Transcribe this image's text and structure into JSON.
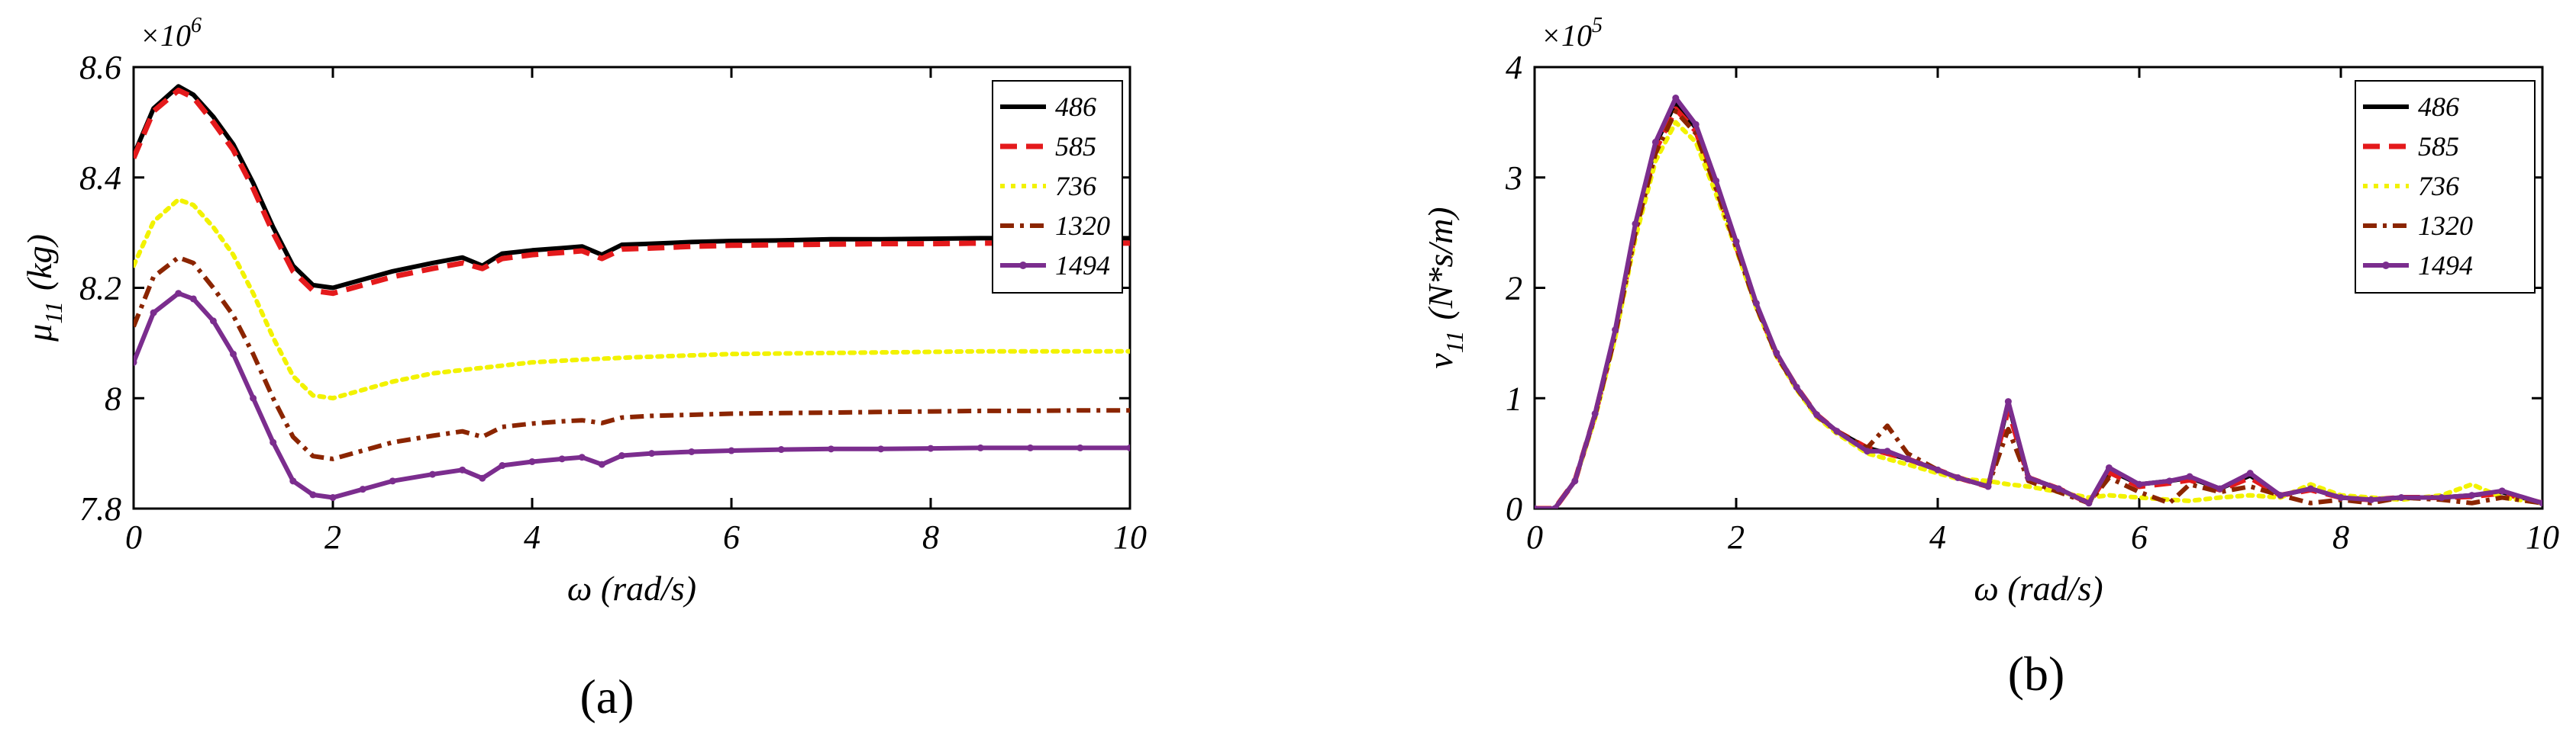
{
  "chart_data": [
    {
      "type": "line",
      "panel_label": "(a)",
      "title": "",
      "xlabel": "ω (rad/s)",
      "ylabel_symbol": "μ",
      "ylabel_subscript": "11",
      "ylabel_unit": "(kg)",
      "multiplier_base": "×10",
      "multiplier_exp": "6",
      "xlim": [
        0,
        10
      ],
      "ylim": [
        7.8,
        8.6
      ],
      "xticks": [
        0,
        2,
        4,
        6,
        8,
        10
      ],
      "xtick_labels": [
        "0",
        "2",
        "4",
        "6",
        "8",
        "10"
      ],
      "yticks": [
        7.8,
        8.0,
        8.2,
        8.4,
        8.6
      ],
      "ytick_labels": [
        "7.8",
        "8",
        "8.2",
        "8.4",
        "8.6"
      ],
      "legend_position": "top-right",
      "series": [
        {
          "name": "486",
          "color": "#000000",
          "style": "solid",
          "x": [
            0,
            0.2,
            0.45,
            0.6,
            0.8,
            1.0,
            1.2,
            1.4,
            1.6,
            1.8,
            2.0,
            2.3,
            2.6,
            3.0,
            3.3,
            3.5,
            3.7,
            4.0,
            4.3,
            4.5,
            4.7,
            4.9,
            5.2,
            5.6,
            6.0,
            6.5,
            7.0,
            7.5,
            8.0,
            8.5,
            9.0,
            9.5,
            10
          ],
          "values": [
            8.44,
            8.525,
            8.565,
            8.55,
            8.51,
            8.46,
            8.39,
            8.31,
            8.24,
            8.205,
            8.2,
            8.215,
            8.23,
            8.245,
            8.255,
            8.24,
            8.262,
            8.268,
            8.272,
            8.275,
            8.26,
            8.278,
            8.28,
            8.283,
            8.285,
            8.286,
            8.288,
            8.288,
            8.289,
            8.29,
            8.29,
            8.29,
            8.29
          ]
        },
        {
          "name": "585",
          "color": "#e41a1c",
          "style": "dashed",
          "x": [
            0,
            0.2,
            0.45,
            0.6,
            0.8,
            1.0,
            1.2,
            1.4,
            1.6,
            1.8,
            2.0,
            2.3,
            2.6,
            3.0,
            3.3,
            3.5,
            3.7,
            4.0,
            4.3,
            4.5,
            4.7,
            4.9,
            5.2,
            5.6,
            6.0,
            6.5,
            7.0,
            7.5,
            8.0,
            8.5,
            9.0,
            9.5,
            10
          ],
          "values": [
            8.435,
            8.52,
            8.558,
            8.545,
            8.5,
            8.45,
            8.38,
            8.3,
            8.23,
            8.195,
            8.19,
            8.205,
            8.22,
            8.235,
            8.245,
            8.235,
            8.253,
            8.26,
            8.264,
            8.267,
            8.253,
            8.27,
            8.272,
            8.275,
            8.277,
            8.278,
            8.279,
            8.28,
            8.28,
            8.281,
            8.281,
            8.281,
            8.281
          ]
        },
        {
          "name": "736",
          "color": "#f2f200",
          "style": "dotted",
          "x": [
            0,
            0.2,
            0.45,
            0.6,
            0.8,
            1.0,
            1.2,
            1.4,
            1.6,
            1.8,
            2.0,
            2.3,
            2.6,
            3.0,
            3.5,
            4.0,
            4.5,
            5.0,
            5.5,
            6.0,
            6.5,
            7.0,
            7.5,
            8.0,
            8.5,
            9.0,
            9.5,
            10
          ],
          "values": [
            8.24,
            8.32,
            8.36,
            8.35,
            8.31,
            8.26,
            8.19,
            8.11,
            8.04,
            8.005,
            8.0,
            8.015,
            8.03,
            8.045,
            8.055,
            8.065,
            8.07,
            8.074,
            8.077,
            8.08,
            8.081,
            8.082,
            8.083,
            8.084,
            8.085,
            8.085,
            8.085,
            8.085
          ]
        },
        {
          "name": "1320",
          "color": "#8b2500",
          "style": "dashdot",
          "x": [
            0,
            0.2,
            0.45,
            0.6,
            0.8,
            1.0,
            1.2,
            1.4,
            1.6,
            1.8,
            2.0,
            2.3,
            2.6,
            3.0,
            3.3,
            3.5,
            3.7,
            4.0,
            4.3,
            4.5,
            4.7,
            4.9,
            5.2,
            5.6,
            6.0,
            6.5,
            7.0,
            7.5,
            8.0,
            8.5,
            9.0,
            9.5,
            10
          ],
          "values": [
            8.13,
            8.22,
            8.255,
            8.245,
            8.2,
            8.15,
            8.08,
            8.0,
            7.93,
            7.895,
            7.89,
            7.905,
            7.92,
            7.932,
            7.94,
            7.93,
            7.948,
            7.954,
            7.958,
            7.96,
            7.955,
            7.965,
            7.968,
            7.97,
            7.972,
            7.973,
            7.974,
            7.975,
            7.976,
            7.977,
            7.977,
            7.978,
            7.978
          ]
        },
        {
          "name": "1494",
          "color": "#7b2d8e",
          "style": "solid-markers",
          "x": [
            0,
            0.2,
            0.45,
            0.6,
            0.8,
            1.0,
            1.2,
            1.4,
            1.6,
            1.8,
            2.0,
            2.3,
            2.6,
            3.0,
            3.3,
            3.5,
            3.7,
            4.0,
            4.3,
            4.5,
            4.7,
            4.9,
            5.2,
            5.6,
            6.0,
            6.5,
            7.0,
            7.5,
            8.0,
            8.5,
            9.0,
            9.5,
            10
          ],
          "values": [
            8.065,
            8.155,
            8.19,
            8.18,
            8.14,
            8.08,
            8.0,
            7.92,
            7.85,
            7.825,
            7.82,
            7.835,
            7.85,
            7.862,
            7.87,
            7.855,
            7.878,
            7.885,
            7.89,
            7.893,
            7.88,
            7.896,
            7.9,
            7.903,
            7.905,
            7.907,
            7.908,
            7.908,
            7.909,
            7.91,
            7.91,
            7.91,
            7.91
          ]
        }
      ]
    },
    {
      "type": "line",
      "panel_label": "(b)",
      "title": "",
      "xlabel": "ω (rad/s)",
      "ylabel_symbol": "ν",
      "ylabel_subscript": "11",
      "ylabel_unit": "(N*s/m)",
      "multiplier_base": "×10",
      "multiplier_exp": "5",
      "xlim": [
        0,
        10
      ],
      "ylim": [
        0,
        4
      ],
      "xticks": [
        0,
        2,
        4,
        6,
        8,
        10
      ],
      "xtick_labels": [
        "0",
        "2",
        "4",
        "6",
        "8",
        "10"
      ],
      "yticks": [
        0,
        1,
        2,
        3,
        4
      ],
      "ytick_labels": [
        "0",
        "1",
        "2",
        "3",
        "4"
      ],
      "legend_position": "top-right",
      "series": [
        {
          "name": "486",
          "color": "#000000",
          "style": "solid",
          "x": [
            0,
            0.2,
            0.4,
            0.6,
            0.8,
            1.0,
            1.2,
            1.4,
            1.6,
            1.8,
            2.0,
            2.2,
            2.4,
            2.6,
            2.8,
            3.0,
            3.3,
            3.5,
            3.7,
            4.0,
            4.2,
            4.5,
            4.7,
            4.9,
            5.2,
            5.5,
            5.7,
            6.0,
            6.3,
            6.5,
            6.8,
            7.1,
            7.4,
            7.7,
            8.0,
            8.3,
            8.6,
            9.0,
            9.3,
            9.6,
            10
          ],
          "values": [
            0,
            0,
            0.25,
            0.85,
            1.6,
            2.55,
            3.3,
            3.68,
            3.45,
            2.95,
            2.4,
            1.85,
            1.4,
            1.1,
            0.85,
            0.7,
            0.55,
            0.5,
            0.45,
            0.35,
            0.28,
            0.2,
            0.95,
            0.28,
            0.18,
            0.05,
            0.35,
            0.22,
            0.25,
            0.28,
            0.18,
            0.3,
            0.12,
            0.18,
            0.1,
            0.08,
            0.1,
            0.1,
            0.12,
            0.15,
            0.05
          ]
        },
        {
          "name": "585",
          "color": "#e41a1c",
          "style": "dashed",
          "x": [
            0,
            0.2,
            0.4,
            0.6,
            0.8,
            1.0,
            1.2,
            1.4,
            1.6,
            1.8,
            2.0,
            2.2,
            2.4,
            2.6,
            2.8,
            3.0,
            3.3,
            3.5,
            3.7,
            4.0,
            4.2,
            4.5,
            4.7,
            4.9,
            5.2,
            5.5,
            5.7,
            6.0,
            6.3,
            6.5,
            6.8,
            7.1,
            7.4,
            7.7,
            8.0,
            8.3,
            8.6,
            9.0,
            9.3,
            9.6,
            10
          ],
          "values": [
            0,
            0,
            0.25,
            0.85,
            1.58,
            2.52,
            3.25,
            3.62,
            3.42,
            2.92,
            2.38,
            1.84,
            1.4,
            1.1,
            0.85,
            0.7,
            0.55,
            0.5,
            0.45,
            0.35,
            0.28,
            0.2,
            0.9,
            0.28,
            0.18,
            0.05,
            0.33,
            0.2,
            0.23,
            0.26,
            0.17,
            0.28,
            0.12,
            0.17,
            0.1,
            0.08,
            0.1,
            0.1,
            0.11,
            0.14,
            0.05
          ]
        },
        {
          "name": "736",
          "color": "#f2f200",
          "style": "dotted",
          "x": [
            0,
            0.2,
            0.4,
            0.6,
            0.8,
            1.0,
            1.2,
            1.4,
            1.6,
            1.8,
            2.0,
            2.2,
            2.4,
            2.6,
            2.8,
            3.0,
            3.3,
            3.5,
            3.7,
            4.0,
            4.2,
            4.5,
            4.7,
            4.9,
            5.2,
            5.5,
            5.7,
            6.0,
            6.3,
            6.5,
            6.8,
            7.1,
            7.4,
            7.7,
            8.0,
            8.3,
            8.6,
            9.0,
            9.3,
            9.6,
            10
          ],
          "values": [
            0,
            0,
            0.25,
            0.82,
            1.55,
            2.45,
            3.15,
            3.5,
            3.32,
            2.85,
            2.35,
            1.82,
            1.38,
            1.08,
            0.83,
            0.68,
            0.5,
            0.45,
            0.4,
            0.32,
            0.27,
            0.25,
            0.22,
            0.2,
            0.15,
            0.1,
            0.12,
            0.1,
            0.08,
            0.07,
            0.1,
            0.12,
            0.1,
            0.22,
            0.12,
            0.1,
            0.08,
            0.12,
            0.22,
            0.1,
            0.05
          ]
        },
        {
          "name": "1320",
          "color": "#8b2500",
          "style": "dashdot",
          "x": [
            0,
            0.2,
            0.4,
            0.6,
            0.8,
            1.0,
            1.2,
            1.4,
            1.6,
            1.8,
            2.0,
            2.2,
            2.4,
            2.6,
            2.8,
            3.0,
            3.3,
            3.5,
            3.7,
            4.0,
            4.2,
            4.5,
            4.7,
            4.9,
            5.2,
            5.5,
            5.7,
            6.0,
            6.3,
            6.5,
            6.8,
            7.1,
            7.4,
            7.7,
            8.0,
            8.3,
            8.6,
            9.0,
            9.3,
            9.6,
            10
          ],
          "values": [
            0,
            0,
            0.25,
            0.84,
            1.57,
            2.5,
            3.22,
            3.6,
            3.4,
            2.9,
            2.37,
            1.83,
            1.39,
            1.09,
            0.84,
            0.7,
            0.55,
            0.75,
            0.5,
            0.35,
            0.28,
            0.2,
            0.72,
            0.25,
            0.15,
            0.05,
            0.28,
            0.15,
            0.05,
            0.22,
            0.15,
            0.2,
            0.12,
            0.05,
            0.08,
            0.05,
            0.1,
            0.08,
            0.05,
            0.1,
            0.05
          ]
        },
        {
          "name": "1494",
          "color": "#7b2d8e",
          "style": "solid-markers",
          "x": [
            0,
            0.2,
            0.4,
            0.6,
            0.8,
            1.0,
            1.2,
            1.4,
            1.6,
            1.8,
            2.0,
            2.2,
            2.4,
            2.6,
            2.8,
            3.0,
            3.3,
            3.5,
            3.7,
            4.0,
            4.2,
            4.5,
            4.7,
            4.9,
            5.2,
            5.5,
            5.7,
            6.0,
            6.3,
            6.5,
            6.8,
            7.1,
            7.4,
            7.7,
            8.0,
            8.3,
            8.6,
            9.0,
            9.3,
            9.6,
            10
          ],
          "values": [
            0,
            0,
            0.25,
            0.86,
            1.62,
            2.58,
            3.32,
            3.72,
            3.48,
            2.97,
            2.42,
            1.86,
            1.41,
            1.1,
            0.85,
            0.7,
            0.52,
            0.52,
            0.45,
            0.35,
            0.28,
            0.2,
            0.97,
            0.28,
            0.18,
            0.05,
            0.37,
            0.22,
            0.25,
            0.29,
            0.18,
            0.32,
            0.12,
            0.18,
            0.1,
            0.08,
            0.1,
            0.1,
            0.12,
            0.16,
            0.05
          ]
        }
      ]
    }
  ]
}
